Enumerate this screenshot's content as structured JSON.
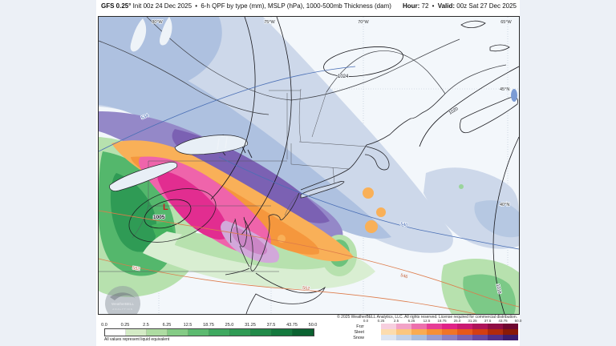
{
  "header": {
    "model": "GFS 0.25°",
    "init_text": "Init 00z 24 Dec 2025",
    "bullet": "•",
    "product": "6-h QPF by type (mm), MSLP (hPa), 1000-500mb Thickness (dam)",
    "hour_label": "Hour:",
    "hour_value": "72",
    "valid_label": "Valid:",
    "valid_value": "00z Sat 27 Dec 2025"
  },
  "map": {
    "lon_labels": [
      "80°W",
      "75°W",
      "70°W",
      "65°W"
    ],
    "lat_labels": [
      "45°N",
      "40°N"
    ],
    "isobar_labels": {
      "high": "1024",
      "l1020": "1020",
      "l1016": "1016",
      "low": "1005"
    },
    "low_symbol": "L",
    "thickness_labels": {
      "t534": "534",
      "t540": "540",
      "t546": "546",
      "t552": "552",
      "t552b": "552"
    },
    "watermark_line1": "WeatherBELL",
    "watermark_line2": "ANALYTICS"
  },
  "footer": {
    "copyright": "© 2025 WeatherBELL Analytics, LLC. All rights reserved. License required for commercial distribution."
  },
  "legend": {
    "ticks": [
      "0.0",
      "0.25",
      "2.5",
      "6.25",
      "12.5",
      "18.75",
      "25.0",
      "31.25",
      "37.5",
      "43.75",
      "50.0"
    ],
    "caption": "All values represent liquid equivalent",
    "rain": {
      "colors": [
        "#ffffff",
        "#d4ebc6",
        "#aedca2",
        "#84cb85",
        "#5cba70",
        "#3fa960",
        "#2f9b55",
        "#218a49",
        "#14793e",
        "#0b6231"
      ]
    },
    "ptype_rows": [
      {
        "label": "Frzr",
        "colors": [
          "#ffffff",
          "#f7cfdf",
          "#f2a3c7",
          "#ec70ad",
          "#e63e97",
          "#df2288",
          "#c91a72",
          "#ad145a",
          "#8f0e44",
          "#6f0830"
        ]
      },
      {
        "label": "Sleet",
        "colors": [
          "#ffffff",
          "#fcdcae",
          "#fbc67f",
          "#f9ab52",
          "#f68f35",
          "#f07427",
          "#e6581c",
          "#d43e12",
          "#b22a0c",
          "#8a1a07"
        ]
      },
      {
        "label": "Snow",
        "colors": [
          "#ffffff",
          "#dde5f1",
          "#c3d1e7",
          "#a9bddd",
          "#9a9cce",
          "#8d7fc0",
          "#7c62b0",
          "#68489e",
          "#532f87",
          "#3c1c6b"
        ]
      }
    ]
  }
}
